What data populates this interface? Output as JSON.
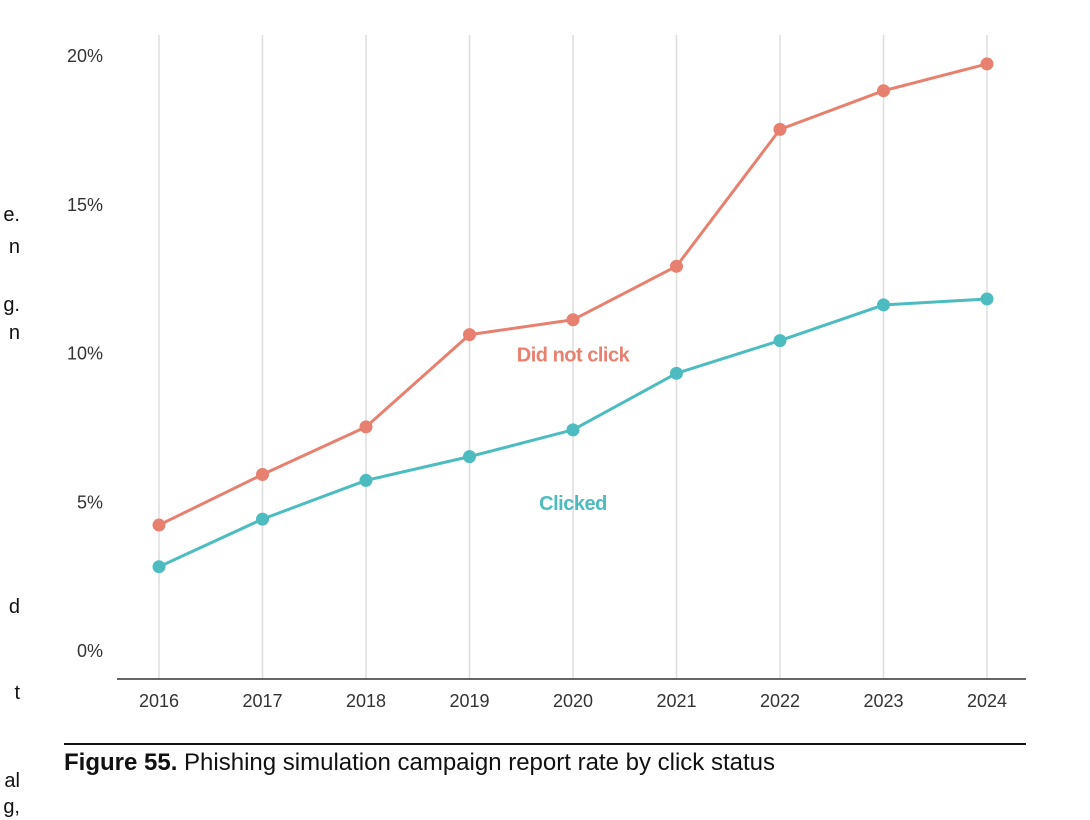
{
  "side_fragments": [
    "e.",
    "n",
    "g.",
    "n",
    "d",
    "t",
    "al",
    "g,"
  ],
  "caption": {
    "label": "Figure 55.",
    "text": " Phishing simulation campaign report rate by click status"
  },
  "colors": {
    "did_not_click": "#e8806f",
    "clicked": "#4cbcc0",
    "grid": "#dddddd",
    "axis": "#333333"
  },
  "chart_data": {
    "type": "line",
    "title": "",
    "xlabel": "",
    "ylabel": "",
    "x": [
      "2016",
      "2017",
      "2018",
      "2019",
      "2020",
      "2021",
      "2022",
      "2023",
      "2024"
    ],
    "ylim": [
      0,
      20
    ],
    "yticks": [
      0,
      5,
      10,
      15,
      20
    ],
    "ytick_labels": [
      "0%",
      "5%",
      "10%",
      "15%",
      "20%"
    ],
    "grid": "vertical",
    "series": [
      {
        "name": "Did not click",
        "color": "#e8806f",
        "values": [
          4.2,
          5.9,
          7.5,
          10.6,
          11.1,
          12.9,
          17.5,
          18.8,
          19.7
        ]
      },
      {
        "name": "Clicked",
        "color": "#4cbcc0",
        "values": [
          2.8,
          4.4,
          5.7,
          6.5,
          7.4,
          9.3,
          10.4,
          11.6,
          11.8
        ]
      }
    ]
  }
}
